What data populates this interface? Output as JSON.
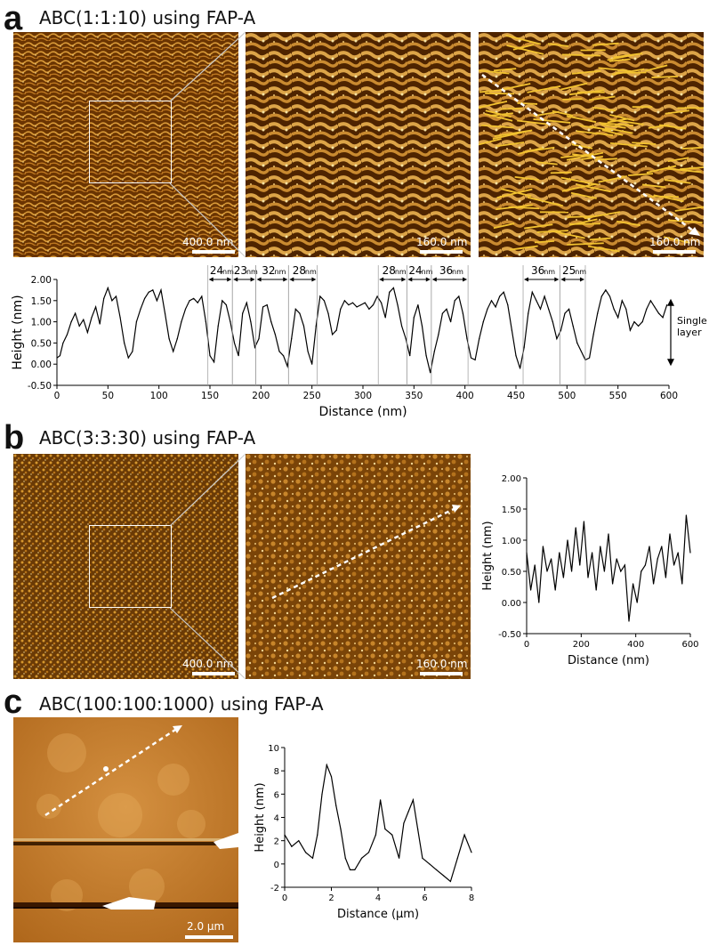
{
  "panels": {
    "a": {
      "letter": "a",
      "title": "ABC(1:1:10) using FAP-A",
      "scale_labels": [
        "400.0 nm",
        "160.0 nm",
        "160.0 nm"
      ]
    },
    "b": {
      "letter": "b",
      "title": "ABC(3:3:30) using FAP-A",
      "scale_labels": [
        "400.0 nm",
        "160.0 nm"
      ]
    },
    "c": {
      "letter": "c",
      "title": "ABC(100:100:1000) using FAP-A",
      "scale_labels": [
        "2.0 μm"
      ]
    }
  },
  "colors": {
    "afm_dark": "#5a2c00",
    "afm_mid": "#b86a12",
    "afm_light": "#f1d890",
    "fibril_line": "#f2c230",
    "arrow": "#ffffff",
    "trace": "#000000"
  },
  "chart_data": [
    {
      "id": "a-profile",
      "type": "line",
      "xlabel": "Distance (nm)",
      "ylabel": "Height  (nm)",
      "xlim": [
        0,
        600
      ],
      "ylim": [
        -0.5,
        2.0
      ],
      "xticks": [
        0,
        50,
        100,
        150,
        200,
        250,
        300,
        350,
        400,
        450,
        500,
        550,
        600
      ],
      "yticks": [
        "-0.50",
        "0.00",
        "0.50",
        "1.00",
        "1.50",
        "2.00"
      ],
      "grid": false,
      "x": [
        0,
        3,
        6,
        10,
        14,
        18,
        22,
        26,
        30,
        34,
        38,
        42,
        46,
        50,
        54,
        58,
        62,
        66,
        70,
        74,
        78,
        82,
        86,
        90,
        94,
        98,
        102,
        106,
        110,
        114,
        118,
        122,
        126,
        130,
        134,
        138,
        142,
        146,
        150,
        154,
        158,
        162,
        166,
        170,
        174,
        178,
        182,
        186,
        190,
        194,
        198,
        202,
        206,
        210,
        214,
        218,
        222,
        226,
        230,
        234,
        238,
        242,
        246,
        250,
        254,
        258,
        262,
        266,
        270,
        274,
        278,
        282,
        286,
        290,
        294,
        298,
        302,
        306,
        310,
        314,
        318,
        322,
        326,
        330,
        334,
        338,
        342,
        346,
        350,
        354,
        358,
        362,
        366,
        370,
        374,
        378,
        382,
        386,
        390,
        394,
        398,
        402,
        406,
        410,
        414,
        418,
        422,
        426,
        430,
        434,
        438,
        442,
        446,
        450,
        454,
        458,
        462,
        466,
        470,
        474,
        478,
        482,
        486,
        490,
        494,
        498,
        502,
        506,
        510,
        514,
        518,
        522,
        526,
        530,
        534,
        538,
        542,
        546,
        550,
        554,
        558,
        562,
        566,
        570,
        574,
        578,
        582,
        586,
        590,
        594,
        598
      ],
      "values": [
        0.15,
        0.2,
        0.5,
        0.7,
        1.0,
        1.2,
        0.9,
        1.05,
        0.75,
        1.1,
        1.35,
        0.95,
        1.55,
        1.8,
        1.5,
        1.6,
        1.1,
        0.5,
        0.15,
        0.3,
        1.0,
        1.3,
        1.55,
        1.7,
        1.75,
        1.5,
        1.75,
        1.2,
        0.6,
        0.3,
        0.6,
        1.0,
        1.3,
        1.5,
        1.55,
        1.45,
        1.6,
        1.0,
        0.2,
        0.05,
        0.9,
        1.5,
        1.4,
        1.0,
        0.5,
        0.2,
        1.2,
        1.45,
        1.0,
        0.4,
        0.6,
        1.35,
        1.4,
        1.0,
        0.7,
        0.3,
        0.2,
        -0.05,
        0.6,
        1.3,
        1.2,
        0.9,
        0.3,
        0.0,
        0.9,
        1.6,
        1.5,
        1.2,
        0.7,
        0.8,
        1.3,
        1.5,
        1.4,
        1.45,
        1.35,
        1.4,
        1.45,
        1.3,
        1.4,
        1.6,
        1.45,
        1.1,
        1.7,
        1.8,
        1.4,
        0.9,
        0.6,
        0.2,
        1.1,
        1.4,
        0.9,
        0.2,
        -0.2,
        0.3,
        0.7,
        1.2,
        1.3,
        1.0,
        1.5,
        1.6,
        1.2,
        0.6,
        0.15,
        0.1,
        0.6,
        1.0,
        1.3,
        1.5,
        1.35,
        1.6,
        1.7,
        1.4,
        0.8,
        0.2,
        -0.1,
        0.4,
        1.2,
        1.7,
        1.5,
        1.3,
        1.6,
        1.3,
        1.0,
        0.6,
        0.8,
        1.2,
        1.3,
        0.9,
        0.5,
        0.3,
        0.1,
        0.15,
        0.7,
        1.2,
        1.6,
        1.75,
        1.6,
        1.3,
        1.1,
        1.5,
        1.3,
        0.8,
        1.0,
        0.9,
        1.0,
        1.3,
        1.5,
        1.35,
        1.2,
        1.1,
        1.4
      ],
      "spacing_labels": [
        {
          "from": 148,
          "to": 172,
          "label": "24",
          "unit": "nm"
        },
        {
          "from": 172,
          "to": 195,
          "label": "23",
          "unit": "nm"
        },
        {
          "from": 195,
          "to": 227,
          "label": "32",
          "unit": "nm"
        },
        {
          "from": 227,
          "to": 255,
          "label": "28",
          "unit": "nm"
        },
        {
          "from": 315,
          "to": 343,
          "label": "28",
          "unit": "nm"
        },
        {
          "from": 343,
          "to": 367,
          "label": "24",
          "unit": "nm"
        },
        {
          "from": 367,
          "to": 403,
          "label": "36",
          "unit": "nm"
        },
        {
          "from": 457,
          "to": 493,
          "label": "36",
          "unit": "nm"
        },
        {
          "from": 493,
          "to": 518,
          "label": "25",
          "unit": "nm"
        }
      ],
      "annotation": {
        "label": [
          "Single",
          "layer"
        ],
        "ymin": 0.0,
        "ymax": 1.5
      }
    },
    {
      "id": "b-profile",
      "type": "line",
      "xlabel": "Distance (nm)",
      "ylabel": "Height  (nm)",
      "xlim": [
        0,
        600
      ],
      "ylim": [
        -0.5,
        2.0
      ],
      "xticks": [
        0,
        200,
        400,
        600
      ],
      "yticks": [
        "-0.50",
        "0.00",
        "0.50",
        "1.00",
        "1.50",
        "2.00"
      ],
      "grid": false,
      "x": [
        0,
        15,
        30,
        45,
        60,
        75,
        90,
        105,
        120,
        135,
        150,
        165,
        180,
        195,
        210,
        225,
        240,
        255,
        270,
        285,
        300,
        315,
        330,
        345,
        360,
        375,
        390,
        405,
        420,
        435,
        450,
        465,
        480,
        495,
        510,
        525,
        540,
        555,
        570,
        585,
        600
      ],
      "values": [
        0.8,
        0.2,
        0.6,
        0.0,
        0.9,
        0.5,
        0.7,
        0.2,
        0.8,
        0.4,
        1.0,
        0.5,
        1.2,
        0.6,
        1.3,
        0.4,
        0.8,
        0.2,
        0.9,
        0.5,
        1.1,
        0.3,
        0.7,
        0.5,
        0.6,
        -0.3,
        0.3,
        0.0,
        0.5,
        0.6,
        0.9,
        0.3,
        0.7,
        0.9,
        0.4,
        1.1,
        0.6,
        0.8,
        0.3,
        1.4,
        0.8
      ]
    },
    {
      "id": "c-profile",
      "type": "line",
      "xlabel": "Distance (μm)",
      "ylabel": "Height  (nm)",
      "xlim": [
        0,
        8
      ],
      "ylim": [
        -2,
        10
      ],
      "xticks": [
        0,
        2,
        4,
        6,
        8
      ],
      "yticks": [
        "-2",
        "0",
        "2",
        "4",
        "6",
        "8",
        "10"
      ],
      "grid": false,
      "x": [
        0,
        0.3,
        0.6,
        0.9,
        1.2,
        1.4,
        1.6,
        1.8,
        2.0,
        2.2,
        2.4,
        2.6,
        2.8,
        3.0,
        3.3,
        3.6,
        3.9,
        4.1,
        4.3,
        4.6,
        4.9,
        5.1,
        5.3,
        5.5,
        5.7,
        5.9,
        6.2,
        6.5,
        6.8,
        7.1,
        7.4,
        7.7,
        8.0
      ],
      "values": [
        2.5,
        1.5,
        2.0,
        1.0,
        0.5,
        2.5,
        6.0,
        8.5,
        7.5,
        5.0,
        3.0,
        0.5,
        -0.5,
        -0.5,
        0.5,
        1.0,
        2.5,
        5.5,
        3.0,
        2.5,
        0.5,
        3.5,
        4.5,
        5.5,
        3.0,
        0.5,
        0.0,
        -0.5,
        -1.0,
        -1.5,
        0.5,
        2.5,
        1.0
      ]
    }
  ]
}
